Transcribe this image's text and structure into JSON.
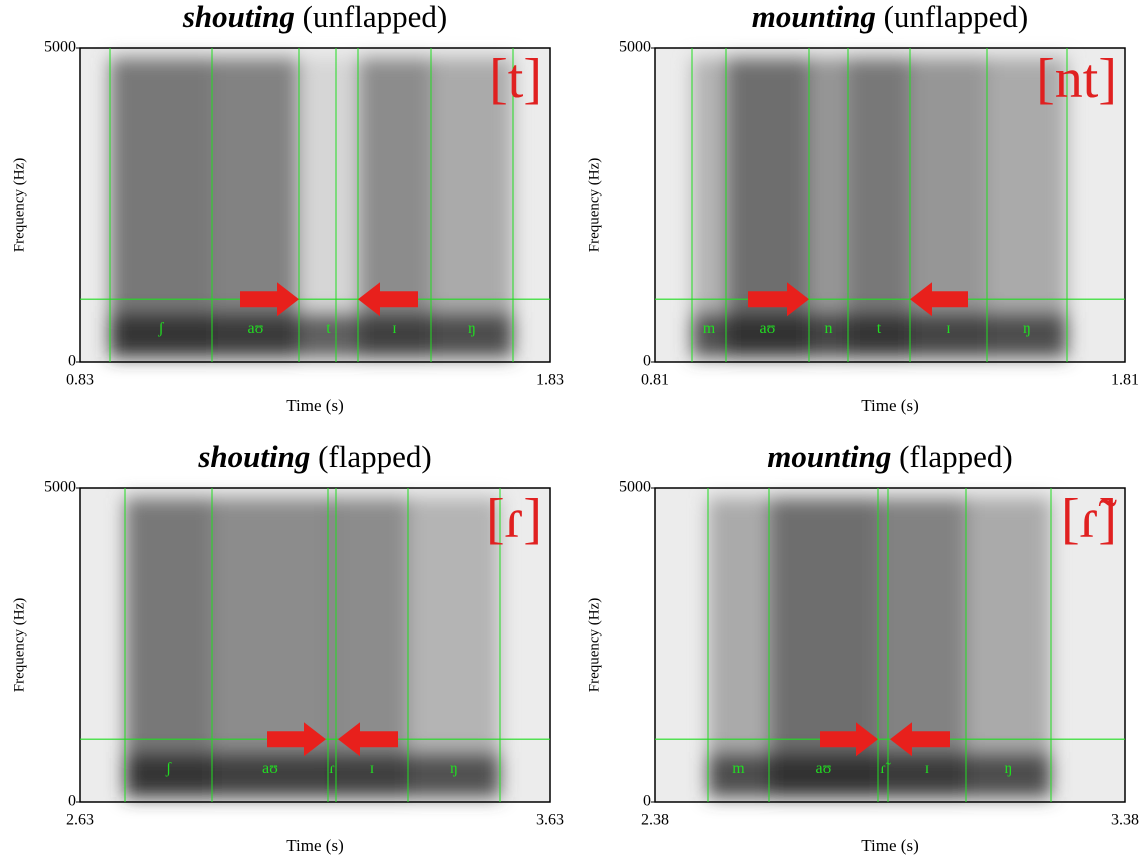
{
  "panels": [
    {
      "title_word": "shouting",
      "title_rest": "(unflapped)",
      "ipa": "[t]",
      "y_label": "Frequency (Hz)",
      "x_label": "Time (s)",
      "y_max": "5000",
      "y_min": "0",
      "x_min": "0.83",
      "x_max": "1.83",
      "segments": [
        "ʃ",
        "aʊ",
        "t",
        "ɪ",
        "ŋ"
      ]
    },
    {
      "title_word": "mounting",
      "title_rest": "(unflapped)",
      "ipa": "[nt]",
      "y_label": "Frequency (Hz)",
      "x_label": "Time (s)",
      "y_max": "5000",
      "y_min": "0",
      "x_min": "0.81",
      "x_max": "1.81",
      "segments": [
        "m",
        "aʊ",
        "n",
        "t",
        "ɪ",
        "ŋ"
      ]
    },
    {
      "title_word": "shouting",
      "title_rest": "(flapped)",
      "ipa": "[ɾ]",
      "y_label": "Frequency (Hz)",
      "x_label": "Time (s)",
      "y_max": "5000",
      "y_min": "0",
      "x_min": "2.63",
      "x_max": "3.63",
      "segments": [
        "ʃ",
        "aʊ",
        "ɾ",
        "ɪ",
        "ŋ"
      ]
    },
    {
      "title_word": "mounting",
      "title_rest": "(flapped)",
      "ipa": "[ɾ̃]",
      "y_label": "Frequency (Hz)",
      "x_label": "Time (s)",
      "y_max": "5000",
      "y_min": "0",
      "x_min": "2.38",
      "x_max": "3.38",
      "segments": [
        "m",
        "aʊ",
        "ɾ̃",
        "ɪ",
        "ŋ"
      ]
    }
  ]
}
